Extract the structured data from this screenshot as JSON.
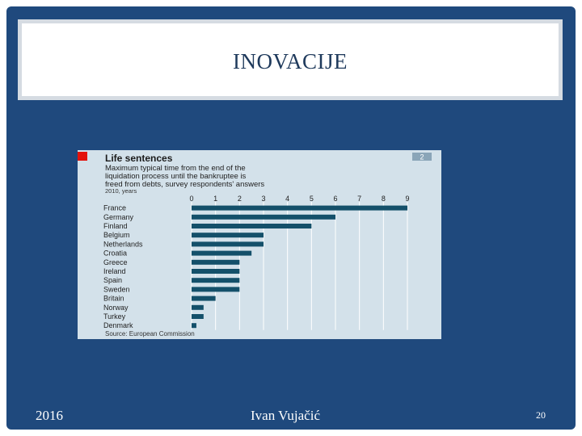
{
  "slide": {
    "title": "INOVACIJE",
    "footer_left": "2016",
    "footer_center": "Ivan Vujačić",
    "page_number": "20"
  },
  "colors": {
    "frame": "#1f497d",
    "chart_bg": "#d3e1ea",
    "bar": "#14506a",
    "accent_red": "#e3120b",
    "badge": "#8aa5b8"
  },
  "chart_data": {
    "type": "bar",
    "orientation": "horizontal",
    "title": "Life sentences",
    "subtitle_lines": [
      "Maximum typical time from the end of the",
      "liquidation process until the bankruptee is",
      "freed from debts, survey respondents' answers"
    ],
    "units_line": "2010, years",
    "badge": "2",
    "source": "Source: European Commission",
    "xlim": [
      0,
      9
    ],
    "x_ticks": [
      "0",
      "1",
      "2",
      "3",
      "4",
      "5",
      "6",
      "7",
      "8",
      "9"
    ],
    "categories": [
      "France",
      "Germany",
      "Finland",
      "Belgium",
      "Netherlands",
      "Croatia",
      "Greece",
      "Ireland",
      "Spain",
      "Sweden",
      "Britain",
      "Norway",
      "Turkey",
      "Denmark"
    ],
    "values": [
      9,
      6,
      5,
      3,
      3,
      2.5,
      2,
      2,
      2,
      2,
      1,
      0.5,
      0.5,
      0.2
    ],
    "grid": true
  }
}
